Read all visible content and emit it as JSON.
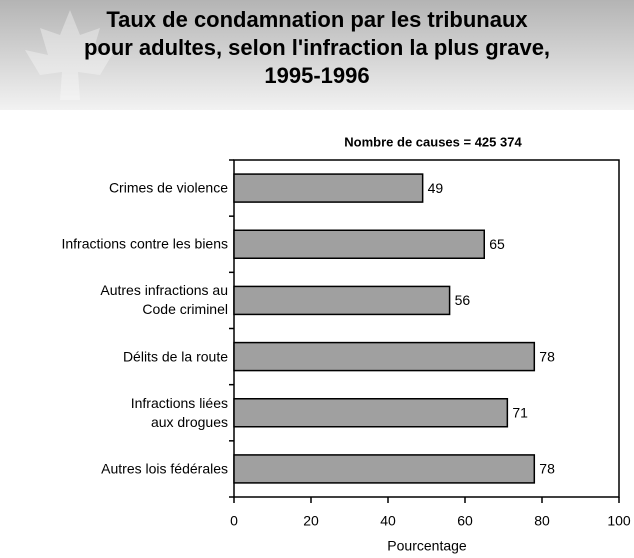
{
  "chart_data": {
    "type": "bar",
    "orientation": "horizontal",
    "title": "Taux de condamnation par les tribunaux\npour adultes, selon l'infraction la plus grave,\n1995-1996",
    "subtitle": "Nombre de causes = 425 374",
    "categories": [
      "Crimes de violence",
      "Infractions contre les biens",
      "Autres infractions au\nCode criminel",
      "Délits de la route",
      "Infractions liées\naux drogues",
      "Autres lois fédérales"
    ],
    "values": [
      49,
      65,
      56,
      78,
      71,
      78
    ],
    "color": "#a0a0a0",
    "xlabel": "Pourcentage",
    "xlim": [
      0,
      100
    ],
    "xticks": [
      0,
      20,
      40,
      60,
      80,
      100
    ]
  }
}
